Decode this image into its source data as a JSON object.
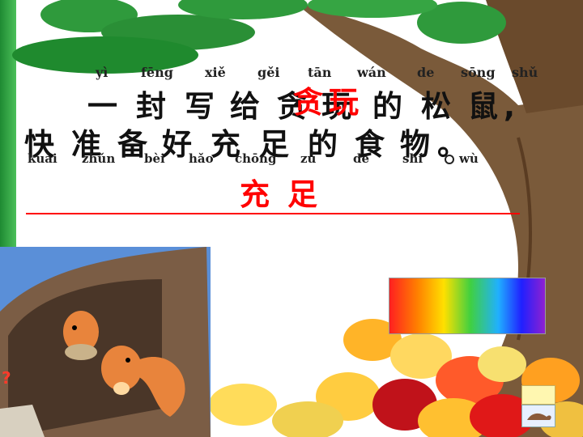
{
  "sentence1": {
    "pinyin": [
      "yì",
      "fēng",
      "xiě",
      "gěi",
      "tān",
      "wán",
      "de",
      "sōng",
      "shǔ"
    ],
    "chars": [
      "一",
      "封",
      "写",
      "给",
      "贪",
      "玩",
      "的",
      "松",
      "鼠",
      ","
    ],
    "overlay": [
      "贪",
      "玩"
    ]
  },
  "sentence2": {
    "pinyin": [
      "kuài",
      "zhǔn",
      "bèi",
      "hǎo",
      "chōng",
      "zú",
      "de",
      "shí",
      "wù"
    ],
    "chars": [
      "快",
      "准",
      "备",
      "好",
      "充",
      "足",
      "的",
      "食",
      "物",
      "。"
    ]
  },
  "answer": [
    "充",
    "足"
  ],
  "cartoon": {
    "bubble": "?"
  },
  "colors": {
    "accent": "#ff0000",
    "frame": "#2a9a3a",
    "trunk": "#7a5a3a"
  }
}
